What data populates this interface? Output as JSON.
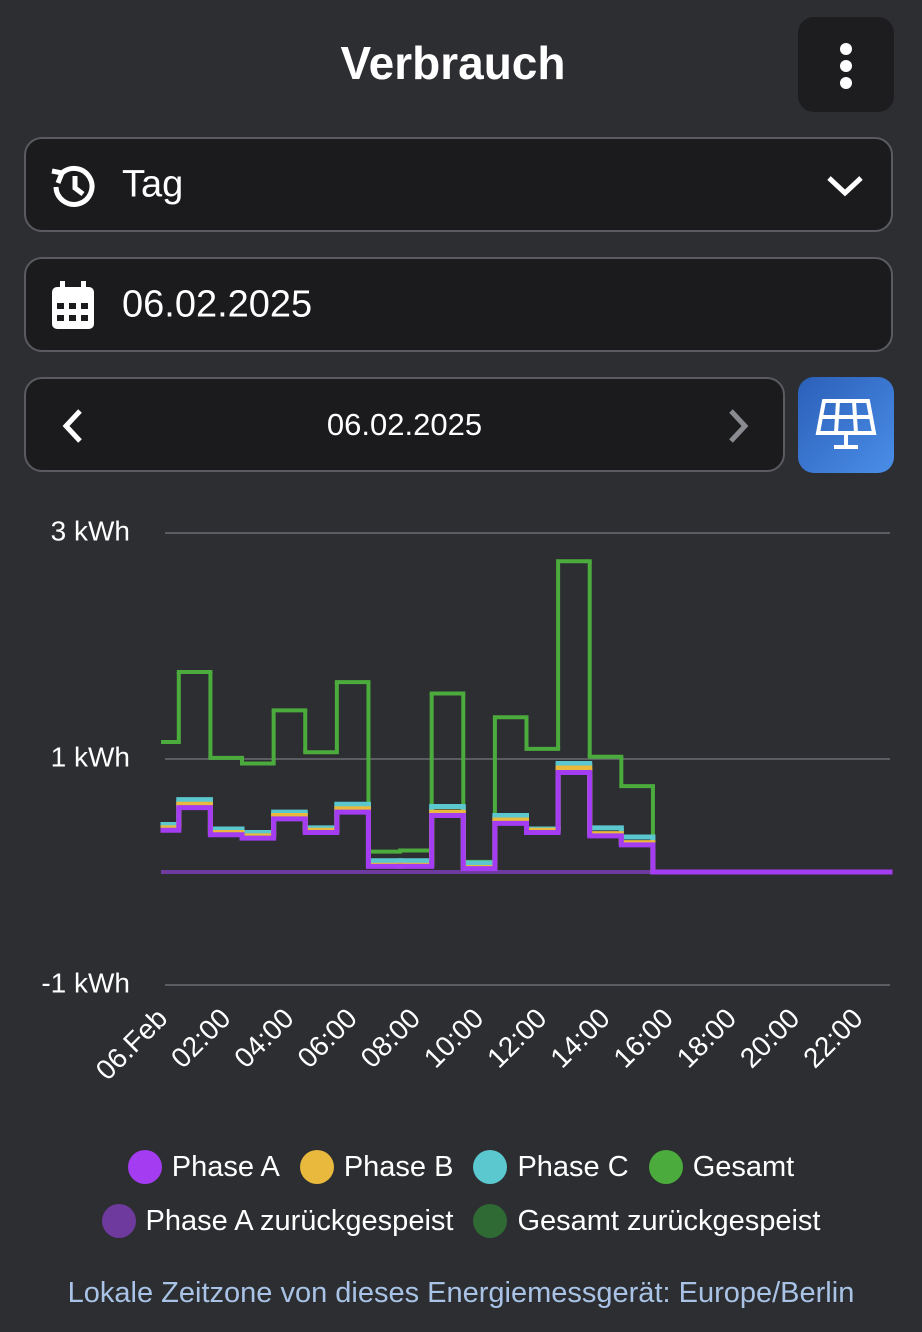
{
  "header": {
    "title": "Verbrauch"
  },
  "controls": {
    "period": "Tag",
    "date_input": "06.02.2025",
    "nav_date": "06.02.2025"
  },
  "chart_data": {
    "type": "step",
    "x": [
      0,
      1,
      2,
      3,
      4,
      5,
      6,
      7,
      8,
      9,
      10,
      11,
      12,
      13,
      14,
      15,
      16,
      17,
      18,
      19,
      20,
      21,
      22,
      23
    ],
    "xlim": [
      0,
      23
    ],
    "xticks": [
      {
        "value": 0,
        "label": "06.Feb"
      },
      {
        "value": 2,
        "label": "02:00"
      },
      {
        "value": 4,
        "label": "04:00"
      },
      {
        "value": 6,
        "label": "06:00"
      },
      {
        "value": 8,
        "label": "08:00"
      },
      {
        "value": 10,
        "label": "10:00"
      },
      {
        "value": 12,
        "label": "12:00"
      },
      {
        "value": 14,
        "label": "14:00"
      },
      {
        "value": 16,
        "label": "16:00"
      },
      {
        "value": 18,
        "label": "18:00"
      },
      {
        "value": 20,
        "label": "20:00"
      },
      {
        "value": 22,
        "label": "22:00"
      }
    ],
    "ylim": [
      -1,
      3
    ],
    "yticks": [
      {
        "value": -1,
        "label": "-1 kWh"
      },
      {
        "value": 1,
        "label": "1 kWh"
      },
      {
        "value": 3,
        "label": "3 kWh"
      }
    ],
    "grid": true,
    "series": [
      {
        "name": "Phase A",
        "color": "#a43cf2",
        "values": [
          0.37,
          0.57,
          0.33,
          0.3,
          0.47,
          0.35,
          0.53,
          0.05,
          0.05,
          0.5,
          0.03,
          0.43,
          0.35,
          0.88,
          0.32,
          0.24,
          0,
          0,
          0,
          0,
          0,
          0,
          0,
          0
        ]
      },
      {
        "name": "Phase B",
        "color": "#e8b93c",
        "values": [
          0.39,
          0.6,
          0.35,
          0.32,
          0.5,
          0.37,
          0.56,
          0.06,
          0.06,
          0.53,
          0.04,
          0.46,
          0.37,
          0.92,
          0.34,
          0.26,
          0,
          0,
          0,
          0,
          0,
          0,
          0,
          0
        ]
      },
      {
        "name": "Phase C",
        "color": "#5bc8cf",
        "values": [
          0.42,
          0.64,
          0.38,
          0.35,
          0.53,
          0.39,
          0.6,
          0.1,
          0.1,
          0.58,
          0.08,
          0.5,
          0.38,
          0.96,
          0.39,
          0.31,
          0,
          0,
          0,
          0,
          0,
          0,
          0,
          0
        ]
      },
      {
        "name": "Gesamt",
        "color": "#4bab3c",
        "values": [
          1.15,
          1.77,
          1.01,
          0.96,
          1.43,
          1.06,
          1.68,
          0.18,
          0.19,
          1.58,
          0.09,
          1.37,
          1.09,
          2.75,
          1.02,
          0.76,
          0,
          0,
          0,
          0,
          0,
          0,
          0,
          0
        ]
      },
      {
        "name": "Phase A zurückgespeist",
        "color": "#6f3a9e",
        "values": [
          0,
          0,
          0,
          0,
          0,
          0,
          0,
          0,
          0,
          0,
          0,
          0,
          0,
          0,
          0,
          0,
          0,
          0,
          0,
          0,
          0,
          0,
          0,
          0
        ]
      },
      {
        "name": "Gesamt zurückgespeist",
        "color": "#2f6a35",
        "values": [
          0,
          0,
          0,
          0,
          0,
          0,
          0,
          0,
          0,
          0,
          0,
          0,
          0,
          0,
          0,
          0,
          0,
          0,
          0,
          0,
          0,
          0,
          0,
          0
        ]
      }
    ]
  },
  "footer": {
    "timezone_note": "Lokale Zeitzone von dieses Energiemessgerät: Europe/Berlin"
  }
}
